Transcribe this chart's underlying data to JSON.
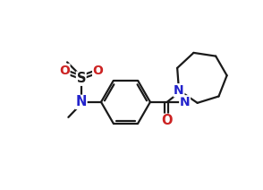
{
  "bg_color": "#ffffff",
  "line_color": "#1a1a1a",
  "N_color": "#2222cc",
  "O_color": "#cc2222",
  "line_width": 1.6,
  "figsize": [
    2.94,
    2.12
  ],
  "dpi": 100,
  "xlim": [
    -1.0,
    9.5
  ],
  "ylim": [
    -0.5,
    7.5
  ]
}
